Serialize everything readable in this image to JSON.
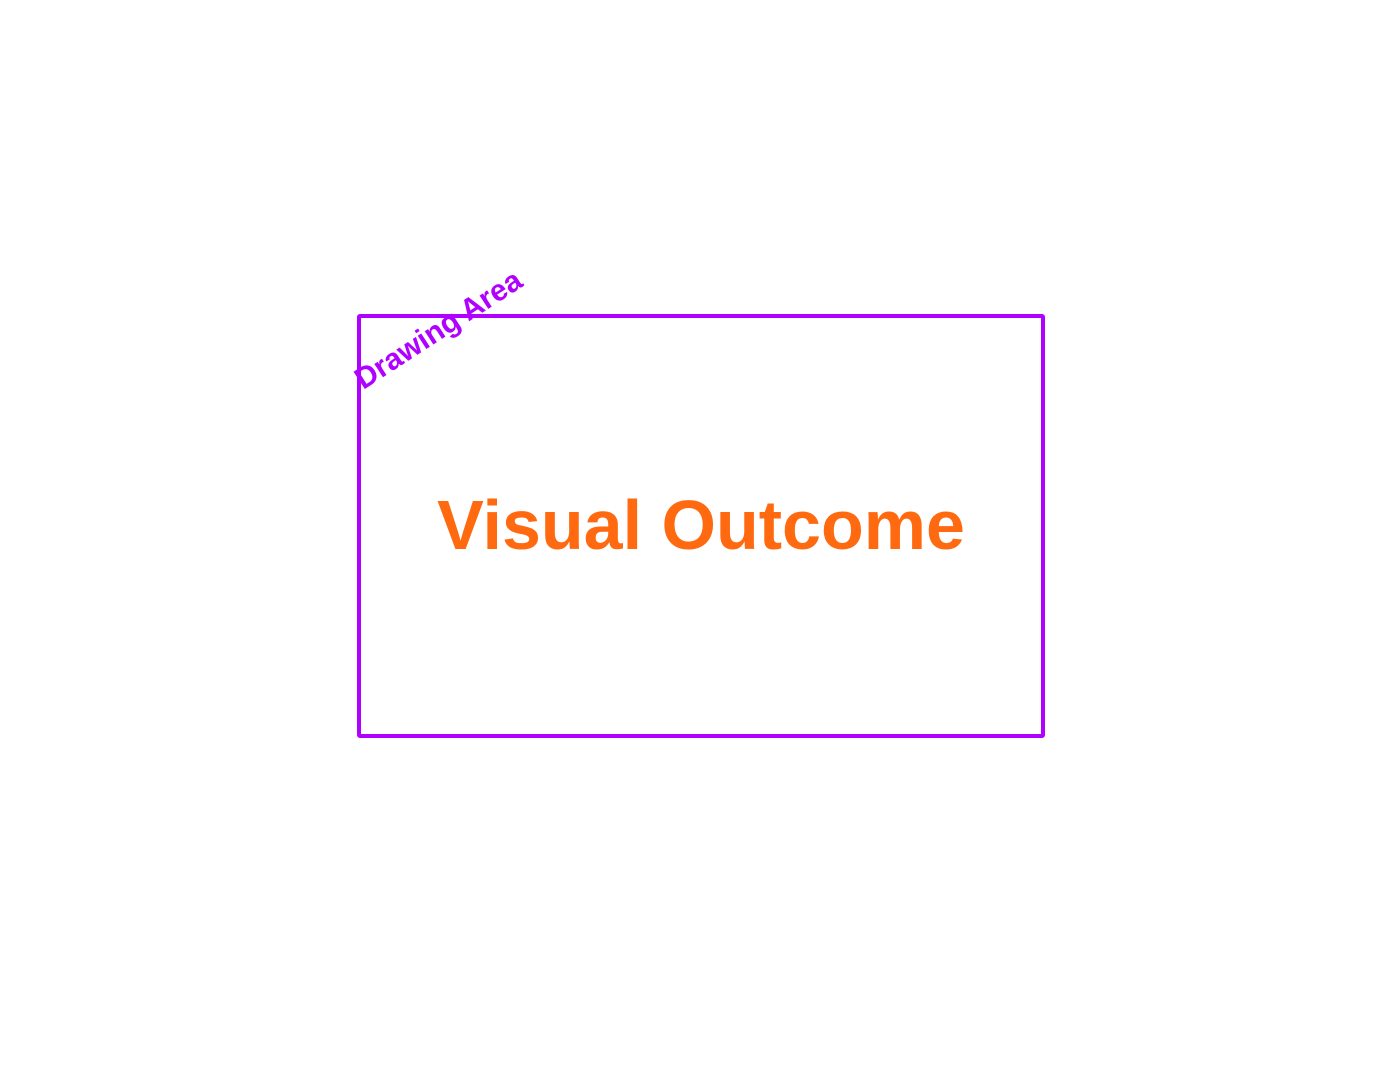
{
  "diagram": {
    "area_label": "Drawing Area",
    "outcome_text": "Visual Outcome",
    "colors": {
      "frame": "#b000ff",
      "area_label": "#b000ff",
      "outcome_text": "#ff6a10",
      "background": "#ffffff"
    }
  }
}
